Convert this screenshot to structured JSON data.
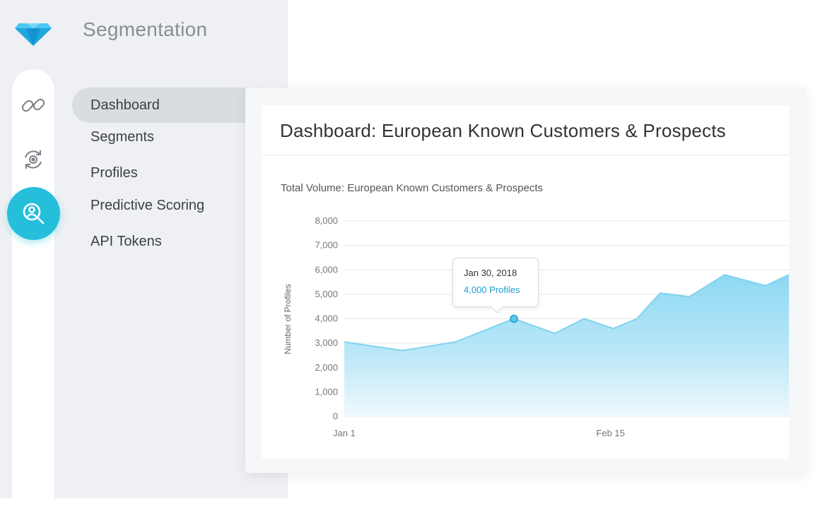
{
  "app": {
    "title": "Segmentation",
    "logo_icon": "diamond-logo"
  },
  "rail": {
    "items": [
      {
        "icon": "link-icon",
        "active": false
      },
      {
        "icon": "gear-sync-icon",
        "active": false
      },
      {
        "icon": "user-search-icon",
        "active": true
      }
    ],
    "accent": "#25bfdc"
  },
  "nav": {
    "items": [
      {
        "label": "Dashboard",
        "active": true
      },
      {
        "label": "Segments",
        "active": false
      },
      {
        "label": "Profiles",
        "active": false
      },
      {
        "label": "Predictive Scoring",
        "active": false
      },
      {
        "label": "API Tokens",
        "active": false
      }
    ]
  },
  "dashboard": {
    "title": "Dashboard: European Known Customers & Prospects"
  },
  "chart_data": {
    "type": "area",
    "title": "Total Volume: European Known Customers & Prospects",
    "ylabel": "Number of Profiles",
    "xlabel": "",
    "ylim": [
      0,
      8000
    ],
    "y_ticks": [
      "0",
      "1,000",
      "2,000",
      "3,000",
      "4,000",
      "5,000",
      "6,000",
      "7,000",
      "8,000"
    ],
    "x_tick_labels": [
      {
        "label": "Jan 1",
        "date": "2018-01-01"
      },
      {
        "label": "Feb 15",
        "date": "2018-02-15"
      }
    ],
    "grid": true,
    "series_color": "#7fd3ef",
    "points": [
      {
        "date": "2018-01-01",
        "value": 3050
      },
      {
        "date": "2018-01-11",
        "value": 2700
      },
      {
        "date": "2018-01-20",
        "value": 3050
      },
      {
        "date": "2018-01-30",
        "value": 4000
      },
      {
        "date": "2018-02-06",
        "value": 3400
      },
      {
        "date": "2018-02-11",
        "value": 4000
      },
      {
        "date": "2018-02-16",
        "value": 3600
      },
      {
        "date": "2018-02-20",
        "value": 4000
      },
      {
        "date": "2018-02-24",
        "value": 5050
      },
      {
        "date": "2018-03-01",
        "value": 4900
      },
      {
        "date": "2018-03-07",
        "value": 5800
      },
      {
        "date": "2018-03-14",
        "value": 5350
      },
      {
        "date": "2018-03-18",
        "value": 5800
      }
    ],
    "tooltip": {
      "date": "Jan 30, 2018",
      "value_text": "4,000 Profiles",
      "value": 4000
    }
  }
}
